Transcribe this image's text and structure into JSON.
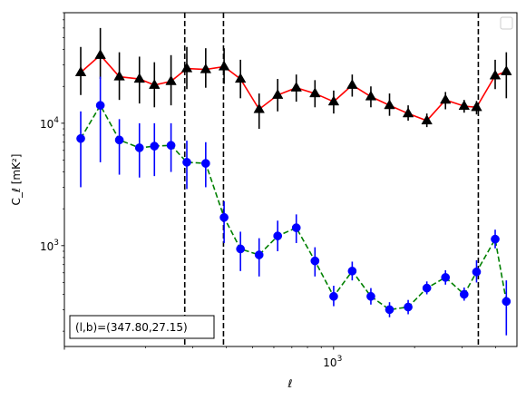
{
  "chart_data": {
    "type": "scatter",
    "title": "",
    "xlabel": "ℓ",
    "ylabel": "C_ℓ [mK²]",
    "xscale": "log",
    "yscale": "log",
    "xlim": [
      100,
      4800
    ],
    "ylim": [
      150,
      80000
    ],
    "grid": false,
    "legend": "top-right (empty)",
    "x_tick_labels": [
      {
        "value": 1000,
        "base": "10",
        "exp": "3"
      }
    ],
    "y_tick_labels": [
      {
        "value": 1000,
        "base": "10",
        "exp": "3"
      },
      {
        "value": 10000,
        "base": "10",
        "exp": "4"
      }
    ],
    "vertical_lines_x": [
      280,
      390,
      3450
    ],
    "annotation": "(l,b)=(347.80,27.15)",
    "series": [
      {
        "color": "#000000",
        "line_color": "#ff0000",
        "line_style": "solid",
        "marker": "triangle",
        "points": [
          {
            "x": 115,
            "y": 26000,
            "lo": 17000,
            "hi": 42000
          },
          {
            "x": 136,
            "y": 36000,
            "lo": 23000,
            "hi": 60000
          },
          {
            "x": 160,
            "y": 24000,
            "lo": 15500,
            "hi": 38000
          },
          {
            "x": 190,
            "y": 23000,
            "lo": 14500,
            "hi": 35000
          },
          {
            "x": 216,
            "y": 20500,
            "lo": 13500,
            "hi": 31500
          },
          {
            "x": 249,
            "y": 22000,
            "lo": 14000,
            "hi": 36000
          },
          {
            "x": 285,
            "y": 28000,
            "lo": 19000,
            "hi": 42000
          },
          {
            "x": 335,
            "y": 27500,
            "lo": 19500,
            "hi": 41000
          },
          {
            "x": 392,
            "y": 29000,
            "lo": 21000,
            "hi": 41000
          },
          {
            "x": 451,
            "y": 23000,
            "lo": 16000,
            "hi": 33000
          },
          {
            "x": 529,
            "y": 13000,
            "lo": 9000,
            "hi": 17500
          },
          {
            "x": 620,
            "y": 17000,
            "lo": 12500,
            "hi": 23000
          },
          {
            "x": 727,
            "y": 19500,
            "lo": 15000,
            "hi": 25000
          },
          {
            "x": 853,
            "y": 17500,
            "lo": 13500,
            "hi": 22500
          },
          {
            "x": 1001,
            "y": 15000,
            "lo": 12000,
            "hi": 18500
          },
          {
            "x": 1173,
            "y": 20500,
            "lo": 16500,
            "hi": 25000
          },
          {
            "x": 1376,
            "y": 16500,
            "lo": 13500,
            "hi": 20000
          },
          {
            "x": 1614,
            "y": 14000,
            "lo": 11500,
            "hi": 17500
          },
          {
            "x": 1893,
            "y": 12000,
            "lo": 10500,
            "hi": 14000
          },
          {
            "x": 2221,
            "y": 10500,
            "lo": 9300,
            "hi": 12000
          },
          {
            "x": 2605,
            "y": 15500,
            "lo": 13000,
            "hi": 18000
          },
          {
            "x": 3056,
            "y": 13800,
            "lo": 12200,
            "hi": 15500
          },
          {
            "x": 3398,
            "y": 13500,
            "lo": 11800,
            "hi": 15200
          },
          {
            "x": 3985,
            "y": 24500,
            "lo": 19000,
            "hi": 33000
          },
          {
            "x": 4384,
            "y": 26500,
            "lo": 16000,
            "hi": 38000
          }
        ]
      },
      {
        "color": "#0000ff",
        "line_color": "#008000",
        "line_style": "dashed",
        "marker": "circle",
        "points": [
          {
            "x": 115,
            "y": 7500,
            "lo": 3000,
            "hi": 12500
          },
          {
            "x": 136,
            "y": 14000,
            "lo": 4800,
            "hi": 24000
          },
          {
            "x": 160,
            "y": 7300,
            "lo": 3800,
            "hi": 10800
          },
          {
            "x": 190,
            "y": 6300,
            "lo": 3600,
            "hi": 10000
          },
          {
            "x": 216,
            "y": 6500,
            "lo": 3700,
            "hi": 10000
          },
          {
            "x": 249,
            "y": 6600,
            "lo": 4000,
            "hi": 10000
          },
          {
            "x": 285,
            "y": 4800,
            "lo": 2900,
            "hi": 7200
          },
          {
            "x": 335,
            "y": 4700,
            "lo": 3000,
            "hi": 7000
          },
          {
            "x": 392,
            "y": 1700,
            "lo": 1050,
            "hi": 2300
          },
          {
            "x": 451,
            "y": 940,
            "lo": 620,
            "hi": 1300
          },
          {
            "x": 529,
            "y": 840,
            "lo": 560,
            "hi": 1150
          },
          {
            "x": 620,
            "y": 1200,
            "lo": 900,
            "hi": 1600
          },
          {
            "x": 727,
            "y": 1400,
            "lo": 1050,
            "hi": 1800
          },
          {
            "x": 853,
            "y": 750,
            "lo": 560,
            "hi": 970
          },
          {
            "x": 1001,
            "y": 385,
            "lo": 320,
            "hi": 470
          },
          {
            "x": 1173,
            "y": 620,
            "lo": 520,
            "hi": 740
          },
          {
            "x": 1376,
            "y": 385,
            "lo": 330,
            "hi": 450
          },
          {
            "x": 1614,
            "y": 300,
            "lo": 260,
            "hi": 345
          },
          {
            "x": 1893,
            "y": 315,
            "lo": 275,
            "hi": 360
          },
          {
            "x": 2221,
            "y": 450,
            "lo": 400,
            "hi": 510
          },
          {
            "x": 2605,
            "y": 550,
            "lo": 480,
            "hi": 630
          },
          {
            "x": 3056,
            "y": 400,
            "lo": 355,
            "hi": 455
          },
          {
            "x": 3398,
            "y": 610,
            "lo": 500,
            "hi": 760
          },
          {
            "x": 3985,
            "y": 1130,
            "lo": 950,
            "hi": 1350
          },
          {
            "x": 4384,
            "y": 350,
            "lo": 185,
            "hi": 520
          }
        ]
      }
    ]
  }
}
